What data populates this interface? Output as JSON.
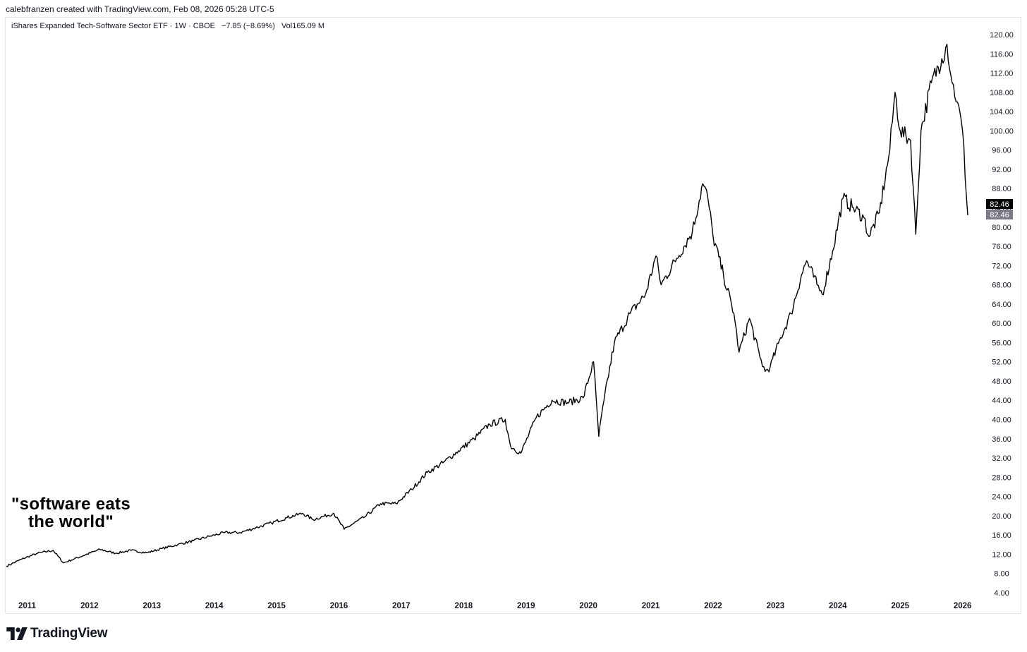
{
  "header": {
    "credit": "calebfranzen created with TradingView.com, Feb 08, 2026 05:28 UTC-5"
  },
  "legend": {
    "symbol": "iShares Expanded Tech-Software Sector ETF · 1W · CBOE",
    "change": "−7.85 (−8.69%)",
    "volume": "Vol165.09 M"
  },
  "annotation": {
    "line1": "\"software eats",
    "line2": "the world\""
  },
  "footer": {
    "brand": "TradingView"
  },
  "colors": {
    "line": "#000000",
    "last_price_bg": "#000000",
    "prev_price_bg": "#787b86",
    "grid_text": "#131722"
  },
  "chart_data": {
    "type": "line",
    "title": "iShares Expanded Tech-Software Sector ETF · 1W · CBOE",
    "xlabel": "",
    "ylabel": "",
    "ylim": [
      2.0,
      122.0
    ],
    "grid": false,
    "y_ticks": [
      "120.00",
      "116.00",
      "112.00",
      "108.00",
      "104.00",
      "100.00",
      "96.00",
      "92.00",
      "88.00",
      "84.00",
      "80.00",
      "76.00",
      "72.00",
      "68.00",
      "64.00",
      "60.00",
      "56.00",
      "52.00",
      "48.00",
      "44.00",
      "40.00",
      "36.00",
      "32.00",
      "28.00",
      "24.00",
      "20.00",
      "16.00",
      "12.00",
      "8.00",
      "4.00"
    ],
    "x_ticks": [
      "2011",
      "2012",
      "2013",
      "2014",
      "2015",
      "2016",
      "2017",
      "2018",
      "2019",
      "2020",
      "2021",
      "2022",
      "2023",
      "2024",
      "2025",
      "2026"
    ],
    "last_price_labels": [
      "82.46",
      "82.46"
    ],
    "series": [
      {
        "x": [
          "2010-09",
          "2010-12",
          "2011-03",
          "2011-06",
          "2011-08",
          "2011-10",
          "2012-03",
          "2012-06",
          "2012-09",
          "2012-12",
          "2013-03",
          "2013-06",
          "2013-09",
          "2013-12",
          "2014-03",
          "2014-06",
          "2014-09",
          "2014-12",
          "2015-03",
          "2015-06",
          "2015-08",
          "2015-12",
          "2016-02",
          "2016-06",
          "2016-09",
          "2016-12",
          "2017-03",
          "2017-06",
          "2017-09",
          "2017-12",
          "2018-03",
          "2018-06",
          "2018-09",
          "2018-10",
          "2018-12",
          "2019-03",
          "2019-06",
          "2019-09",
          "2019-12",
          "2020-02",
          "2020-03",
          "2020-04",
          "2020-06",
          "2020-09",
          "2020-12",
          "2021-02",
          "2021-03",
          "2021-06",
          "2021-09",
          "2021-11",
          "2021-12",
          "2022-01",
          "2022-03",
          "2022-05",
          "2022-06",
          "2022-08",
          "2022-10",
          "2022-11",
          "2022-12",
          "2023-02",
          "2023-04",
          "2023-06",
          "2023-07",
          "2023-09",
          "2023-10",
          "2023-12",
          "2024-02",
          "2024-04",
          "2024-06",
          "2024-07",
          "2024-09",
          "2024-11",
          "2024-12",
          "2025-01",
          "2025-03",
          "2025-04",
          "2025-05",
          "2025-07",
          "2025-09",
          "2025-10",
          "2025-11",
          "2025-12",
          "2026-01",
          "2026-02"
        ],
        "y": [
          9.5,
          11.0,
          12.2,
          12.8,
          10.2,
          11.0,
          13.0,
          12.2,
          12.8,
          12.3,
          13.2,
          14.0,
          14.8,
          15.7,
          16.5,
          16.5,
          17.5,
          18.5,
          19.6,
          20.5,
          19.2,
          20.5,
          17.2,
          19.8,
          22.5,
          22.5,
          25.5,
          29.0,
          31.0,
          33.5,
          36.0,
          39.0,
          40.0,
          34.5,
          33.0,
          40.5,
          44.0,
          43.5,
          44.5,
          52.0,
          36.5,
          44.0,
          56.0,
          62.0,
          66.0,
          74.0,
          68.0,
          73.5,
          79.0,
          89.0,
          86.0,
          78.0,
          70.0,
          62.0,
          54.0,
          61.0,
          53.0,
          50.0,
          51.0,
          57.0,
          62.0,
          70.0,
          73.0,
          68.0,
          66.0,
          75.0,
          86.0,
          84.0,
          82.0,
          78.0,
          83.0,
          96.0,
          108.0,
          100.0,
          98.0,
          78.5,
          100.0,
          110.0,
          115.0,
          118.0,
          110.0,
          106.0,
          100.0,
          82.46
        ]
      }
    ]
  }
}
